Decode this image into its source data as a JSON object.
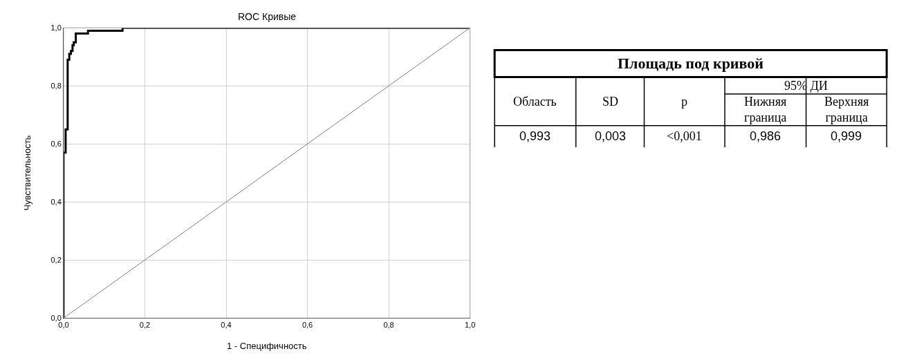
{
  "chart_data": [
    {
      "type": "step",
      "title": "ROC Кривые",
      "xlabel": "1 - Специфичность",
      "ylabel": "Чувствительность",
      "xlim": [
        0,
        1
      ],
      "ylim": [
        0,
        1
      ],
      "xticks": [
        {
          "value": 0,
          "label": "0,0"
        },
        {
          "value": 0.2,
          "label": "0,2"
        },
        {
          "value": 0.4,
          "label": "0,4"
        },
        {
          "value": 0.6,
          "label": "0,6"
        },
        {
          "value": 0.8,
          "label": "0,8"
        },
        {
          "value": 1,
          "label": "1,0"
        }
      ],
      "yticks": [
        {
          "value": 0,
          "label": "0,0"
        },
        {
          "value": 0.2,
          "label": "0,2"
        },
        {
          "value": 0.4,
          "label": "0,4"
        },
        {
          "value": 0.6,
          "label": "0,6"
        },
        {
          "value": 0.8,
          "label": "0,8"
        },
        {
          "value": 1,
          "label": "1,0"
        }
      ],
      "grid": true,
      "series": [
        {
          "type": "step",
          "color": "#000000",
          "x": [
            0,
            0,
            0.005,
            0.01,
            0.014,
            0.018,
            0.022,
            0.025,
            0.03,
            0.06,
            0.145,
            1
          ],
          "values": [
            0,
            0.57,
            0.65,
            0.89,
            0.91,
            0.92,
            0.94,
            0.95,
            0.98,
            0.99,
            1,
            1
          ]
        },
        {
          "type": "line",
          "color": "#808080",
          "x": [
            0,
            1
          ],
          "values": [
            0,
            1
          ]
        }
      ]
    },
    {
      "type": "other",
      "title": "Площадь под кривой",
      "annotations": [
        "95% ДИ",
        "Область",
        "SD",
        "p",
        "Нижняя граница",
        "Верхняя граница",
        "0,993",
        "0,003",
        "<0,001",
        "0,986",
        "0,999"
      ]
    }
  ]
}
